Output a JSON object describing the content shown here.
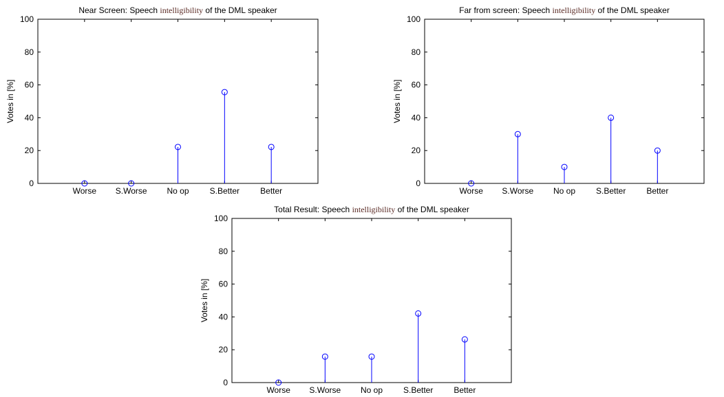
{
  "chart_data": [
    {
      "type": "stem",
      "title": {
        "prefix": "Near Screen: Speech ",
        "emphasis": "intelligibility",
        "suffix": " of the DML speaker"
      },
      "ylabel": "Votes in [%]",
      "categories": [
        "Worse",
        "S.Worse",
        "No op",
        "S.Better",
        "Better"
      ],
      "values": [
        0,
        0,
        22.2,
        55.6,
        22.2
      ],
      "ylim": [
        0,
        100
      ],
      "yticks": [
        0,
        20,
        40,
        60,
        80,
        100
      ],
      "xlim": [
        0,
        6
      ],
      "grid": false,
      "color": "#0000ff"
    },
    {
      "type": "stem",
      "title": {
        "prefix": "Far from screen: Speech ",
        "emphasis": "intelligibility",
        "suffix": " of the DML speaker"
      },
      "ylabel": "Votes in [%]",
      "categories": [
        "Worse",
        "S.Worse",
        "No op",
        "S.Better",
        "Better"
      ],
      "values": [
        0,
        30,
        10,
        40,
        20
      ],
      "ylim": [
        0,
        100
      ],
      "yticks": [
        0,
        20,
        40,
        60,
        80,
        100
      ],
      "xlim": [
        0,
        6
      ],
      "grid": false,
      "color": "#0000ff"
    },
    {
      "type": "stem",
      "title": {
        "prefix": "Total Result: Speech ",
        "emphasis": "intelligibility",
        "suffix": " of the DML speaker"
      },
      "ylabel": "Votes in [%]",
      "categories": [
        "Worse",
        "S.Worse",
        "No op",
        "S.Better",
        "Better"
      ],
      "values": [
        0,
        15.8,
        15.8,
        42.1,
        26.3
      ],
      "ylim": [
        0,
        100
      ],
      "yticks": [
        0,
        20,
        40,
        60,
        80,
        100
      ],
      "xlim": [
        0,
        6
      ],
      "grid": false,
      "color": "#0000ff"
    }
  ]
}
